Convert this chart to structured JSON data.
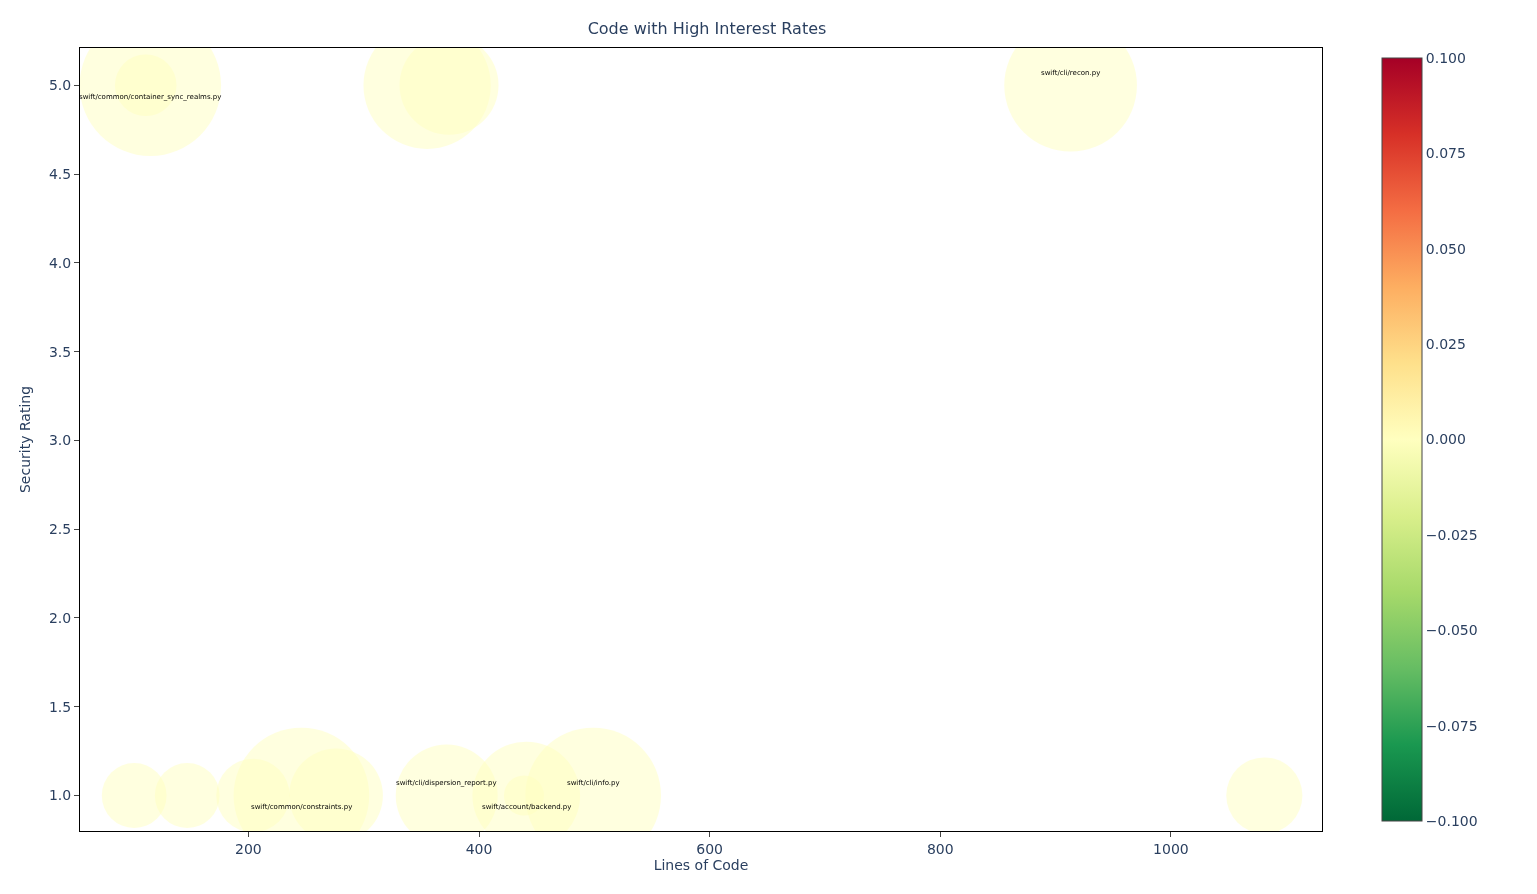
{
  "chart_data": {
    "type": "bubble",
    "title": "Code with High Interest Rates",
    "xlabel": "Lines of Code",
    "ylabel": "Security Rating",
    "relative": false,
    "x": [
      115,
      111,
      355,
      374,
      913,
      101,
      147,
      204,
      246,
      276,
      372,
      441,
      439,
      499,
      1081
    ],
    "values": [
      5,
      5,
      5,
      5,
      5,
      1,
      1,
      1,
      1,
      1,
      1,
      1,
      1,
      1,
      1
    ],
    "sizes": [
      1,
      0.19,
      0.81,
      0.49,
      0.88,
      0.21,
      0.21,
      0.27,
      0.92,
      0.44,
      0.52,
      0.58,
      0.08,
      0.92,
      0.29
    ],
    "cvalues": [
      0,
      0,
      0,
      0,
      0,
      0,
      0,
      0,
      0,
      0,
      0,
      0,
      0,
      0,
      0
    ],
    "clim": [
      -0.1,
      0.1
    ],
    "cticks": [
      {
        "value": -0.1,
        "label": "−0.100"
      },
      {
        "value": -0.075,
        "label": "−0.075"
      },
      {
        "value": -0.05,
        "label": "−0.050"
      },
      {
        "value": -0.025,
        "label": "−0.025"
      },
      {
        "value": 0,
        "label": "0.000"
      },
      {
        "value": 0.025,
        "label": "0.025"
      },
      {
        "value": 0.05,
        "label": "0.050"
      },
      {
        "value": 0.075,
        "label": "0.075"
      },
      {
        "value": 0.1,
        "label": "0.100"
      }
    ],
    "xlim": [
      54,
      1131
    ],
    "xticks": [
      200,
      400,
      600,
      800,
      1000
    ],
    "ylim": [
      0.8,
      5.21
    ],
    "yticks": [
      {
        "value": 1,
        "label": "1.0"
      },
      1.5,
      {
        "value": 2,
        "label": "2.0"
      },
      2.5,
      {
        "value": 3,
        "label": "3.0"
      },
      3.5,
      {
        "value": 4,
        "label": "4.0"
      },
      4.5,
      {
        "value": 5,
        "label": "5.0"
      }
    ],
    "annotations": [
      {
        "text": "swift/common/container_sync_realms.py",
        "x": 115,
        "y": 5
      },
      {
        "text": "swift/cli/recon.py",
        "x": 913,
        "y": 5
      },
      {
        "text": "swift/common/constraints.py",
        "x": 246,
        "y": 1
      },
      {
        "text": "swift/cli/dispersion_report.py",
        "x": 372,
        "y": 1
      },
      {
        "text": "swift/account/backend.py",
        "x": 441,
        "y": 1
      },
      {
        "text": "swift/cli/info.py",
        "x": 499,
        "y": 1
      }
    ]
  }
}
